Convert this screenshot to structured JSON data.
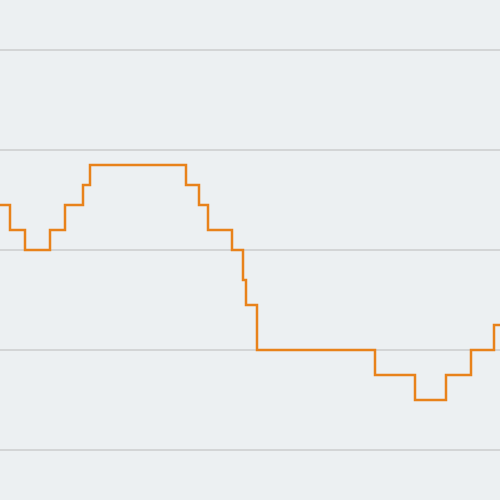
{
  "colors": {
    "background": "#ecf0f2",
    "gridline": "#d3d5d6",
    "series": "#e8821a"
  },
  "chart_data": {
    "type": "line",
    "step": true,
    "title": "",
    "xlabel": "",
    "ylabel": "",
    "grid": true,
    "xlim": [
      0,
      500
    ],
    "ylim": [
      0,
      5
    ],
    "gridlines_y": [
      0.5,
      1.5,
      2.5,
      3.5,
      4.5
    ],
    "series": [
      {
        "x": [
          0,
          10,
          25,
          50,
          65,
          83,
          90,
          186,
          199,
          208,
          232,
          243,
          246,
          257,
          375,
          415,
          446,
          471,
          494,
          500
        ],
        "y": [
          2.95,
          2.7,
          2.5,
          2.7,
          2.95,
          3.15,
          3.35,
          3.15,
          2.95,
          2.7,
          2.5,
          2.2,
          1.95,
          1.5,
          1.25,
          1.0,
          1.25,
          1.5,
          1.75,
          1.75
        ]
      }
    ]
  }
}
